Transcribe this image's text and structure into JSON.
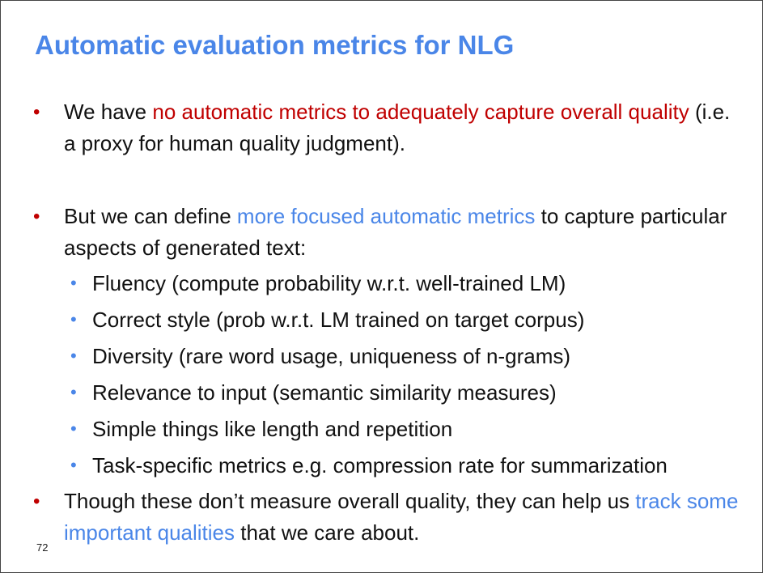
{
  "slide": {
    "title": "Automatic evaluation metrics for NLG",
    "page_number": "72",
    "bullets": [
      {
        "marker": "•",
        "parts": [
          "We have ",
          "no automatic metrics to adequately capture overall quality",
          " (i.e. a proxy for human quality judgment)."
        ]
      },
      {
        "marker": "•",
        "parts": [
          "But we can define ",
          "more focused automatic metrics",
          " to capture particular aspects of generated text:"
        ],
        "subbullets": [
          {
            "marker": "•",
            "text": "Fluency (compute probability w.r.t. well-trained LM)"
          },
          {
            "marker": "•",
            "text": "Correct style (prob w.r.t. LM trained on target corpus)"
          },
          {
            "marker": "•",
            "text": "Diversity (rare word usage, uniqueness of n-grams)"
          },
          {
            "marker": "•",
            "text": "Relevance to input (semantic similarity measures)"
          },
          {
            "marker": "•",
            "text": "Simple things like length and repetition"
          },
          {
            "marker": "•",
            "text": "Task-specific metrics e.g. compression rate for summarization"
          }
        ]
      },
      {
        "marker": "•",
        "parts": [
          "Though these don’t measure overall quality, they can help us ",
          "track some important qualities",
          " that we care about."
        ]
      }
    ],
    "colors": {
      "title": "#4a86e8",
      "red_emphasis": "#c00000",
      "blue_emphasis": "#4a86e8"
    }
  }
}
